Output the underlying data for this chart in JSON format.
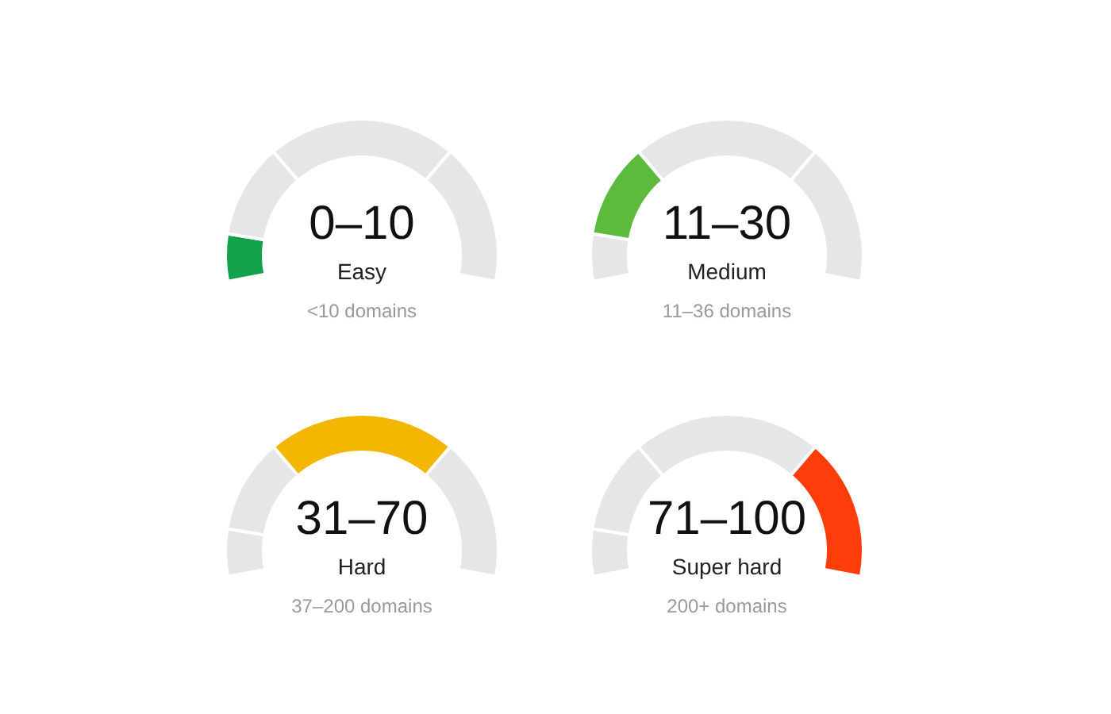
{
  "chart_data": [
    {
      "type": "donut",
      "title": "0–10",
      "subtitle": "Easy",
      "annotations": [
        "<10 domains"
      ],
      "categories": [
        null,
        null,
        null,
        null
      ],
      "values": [
        10,
        20,
        40,
        30
      ],
      "colors": [
        "#13a14b",
        "#e6e6e6",
        "#e6e6e6",
        "#e6e6e6"
      ]
    },
    {
      "type": "donut",
      "title": "11–30",
      "subtitle": "Medium",
      "annotations": [
        "11–36 domains"
      ],
      "categories": [
        null,
        null,
        null,
        null
      ],
      "values": [
        10,
        20,
        40,
        30
      ],
      "colors": [
        "#e6e6e6",
        "#5cbb3c",
        "#e6e6e6",
        "#e6e6e6"
      ]
    },
    {
      "type": "donut",
      "title": "31–70",
      "subtitle": "Hard",
      "annotations": [
        "37–200 domains"
      ],
      "categories": [
        null,
        null,
        null,
        null
      ],
      "values": [
        10,
        20,
        40,
        30
      ],
      "colors": [
        "#e6e6e6",
        "#e6e6e6",
        "#f3b700",
        "#e6e6e6"
      ]
    },
    {
      "type": "donut",
      "title": "71–100",
      "subtitle": "Super hard",
      "annotations": [
        "200+ domains"
      ],
      "categories": [
        null,
        null,
        null,
        null
      ],
      "values": [
        10,
        20,
        40,
        30
      ],
      "colors": [
        "#e6e6e6",
        "#e6e6e6",
        "#e6e6e6",
        "#ff3d0a"
      ]
    }
  ]
}
